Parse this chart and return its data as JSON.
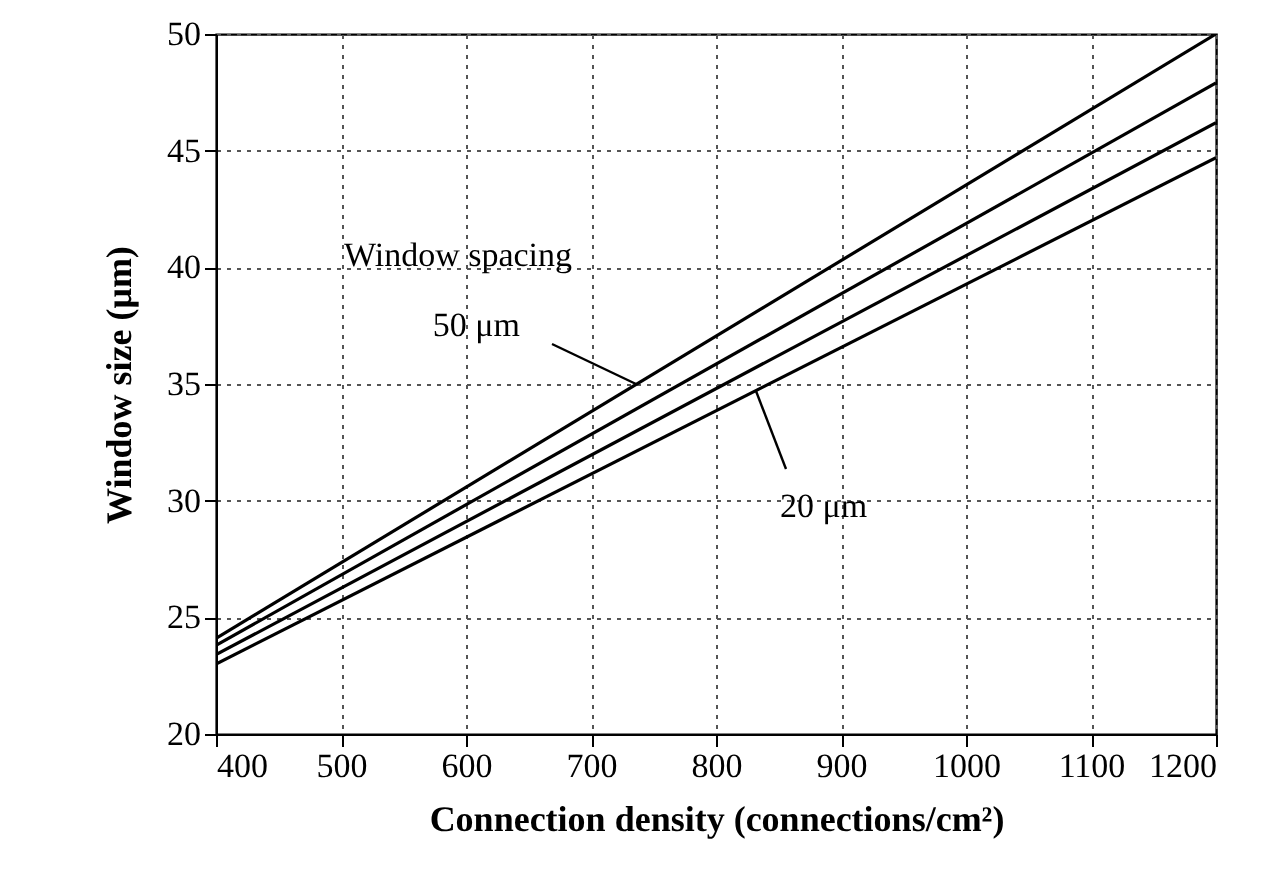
{
  "chart_data": {
    "type": "line",
    "xlabel": "Connection density (connections/cm²)",
    "ylabel": "Window size (μm)",
    "x": [
      400,
      1200
    ],
    "series": [
      {
        "color": "#000000",
        "values": [
          24.1,
          50
        ]
      },
      {
        "color": "#000000",
        "values": [
          23.8,
          47.9
        ]
      },
      {
        "color": "#000000",
        "values": [
          23.4,
          46.2
        ]
      },
      {
        "color": "#000000",
        "values": [
          23.0,
          44.7
        ]
      }
    ],
    "xlim": [
      400,
      1200
    ],
    "xticks": [
      400,
      500,
      600,
      700,
      800,
      900,
      1000,
      1100,
      1200
    ],
    "ylim": [
      20,
      50
    ],
    "yticks": [
      20,
      25,
      30,
      35,
      40,
      45,
      50
    ],
    "grid": true,
    "line_style": "solid",
    "marker": "none",
    "annotations": [
      "Window spacing",
      {
        "text": "50 μm",
        "x": 736,
        "y": 35.0
      },
      {
        "text": "20 μm",
        "x": 832,
        "y": 34.7
      }
    ]
  }
}
